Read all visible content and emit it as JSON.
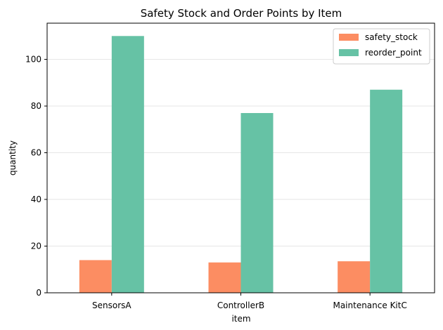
{
  "chart_data": {
    "type": "bar",
    "title": "Safety Stock and Order Points by Item",
    "xlabel": "item",
    "ylabel": "quantity",
    "categories": [
      "SensorsA",
      "ControllerB",
      "Maintenance KitC"
    ],
    "series": [
      {
        "name": "safety_stock",
        "values": [
          14,
          13,
          13.5
        ],
        "color": "#fc8d62"
      },
      {
        "name": "reorder_point",
        "values": [
          110,
          77,
          87
        ],
        "color": "#66c2a5"
      }
    ],
    "ylim": [
      0,
      115.5
    ],
    "yticks": [
      0,
      20,
      40,
      60,
      80,
      100
    ],
    "grid": "horizontal",
    "legend_position": "top-right"
  }
}
